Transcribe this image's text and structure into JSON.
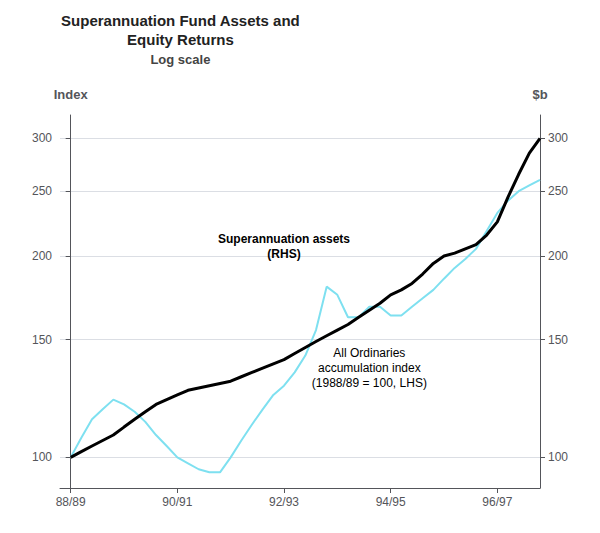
{
  "chart_data": {
    "type": "line",
    "title": "Superannuation Fund Assets and\nEquity Returns",
    "subtitle": "Log scale",
    "y_label": "Index",
    "y2_label": "$b",
    "log": "y",
    "grid": true,
    "x": [
      0.0,
      0.2,
      0.4,
      0.6,
      0.8,
      1.0,
      1.2,
      1.4,
      1.6,
      1.8,
      2.0,
      2.2,
      2.4,
      2.6,
      2.8,
      3.0,
      3.2,
      3.4,
      3.6,
      3.8,
      4.0,
      4.2,
      4.4,
      4.6,
      4.8,
      5.0,
      5.2,
      5.4,
      5.6,
      5.8,
      6.0,
      6.2,
      6.4,
      6.6,
      6.8,
      7.0,
      7.2,
      7.4,
      7.6,
      7.8,
      8.0,
      8.2,
      8.4,
      8.6,
      8.8
    ],
    "xlim": [
      -0.2,
      8.8
    ],
    "xticks": [
      {
        "value": 0,
        "label": "88/89"
      },
      {
        "value": 2,
        "label": "90/91"
      },
      {
        "value": 4,
        "label": "92/93"
      },
      {
        "value": 6,
        "label": "94/95"
      },
      {
        "value": 8,
        "label": "96/97"
      }
    ],
    "ylim": [
      90,
      325
    ],
    "yticks": [
      100,
      150,
      200,
      250,
      300
    ],
    "y2lim": [
      90,
      325
    ],
    "y2ticks": [
      100,
      150,
      200,
      250,
      300
    ],
    "series": [
      {
        "color": "#7ee0f0",
        "axis": "y",
        "values": [
          100,
          107,
          114,
          118,
          122,
          120,
          117,
          113,
          108,
          104,
          100,
          98,
          96,
          95,
          95,
          100,
          106,
          112,
          118,
          124,
          128,
          134,
          142,
          155,
          180,
          175,
          162,
          162,
          168,
          168,
          163,
          163,
          168,
          173,
          178,
          185,
          192,
          198,
          205,
          218,
          232,
          242,
          250,
          255,
          260
        ]
      },
      {
        "color": "#000000",
        "axis": "y2",
        "values": [
          100,
          102,
          104,
          106,
          108,
          111,
          114,
          117,
          120,
          122,
          124,
          126,
          127,
          128,
          129,
          130,
          132,
          134,
          136,
          138,
          140,
          143,
          146,
          149,
          152,
          155,
          158,
          162,
          166,
          170,
          175,
          178,
          182,
          188,
          195,
          200,
          202,
          205,
          208,
          215,
          225,
          245,
          265,
          285,
          300
        ]
      }
    ],
    "annotations": [
      {
        "text": "Superannuation assets\n(RHS)",
        "x": 4.0,
        "y": 195
      },
      {
        "text": "All Ordinaries\naccumulation index\n(1988/89 = 100, LHS)",
        "x": 5.6,
        "y": 148
      }
    ]
  }
}
